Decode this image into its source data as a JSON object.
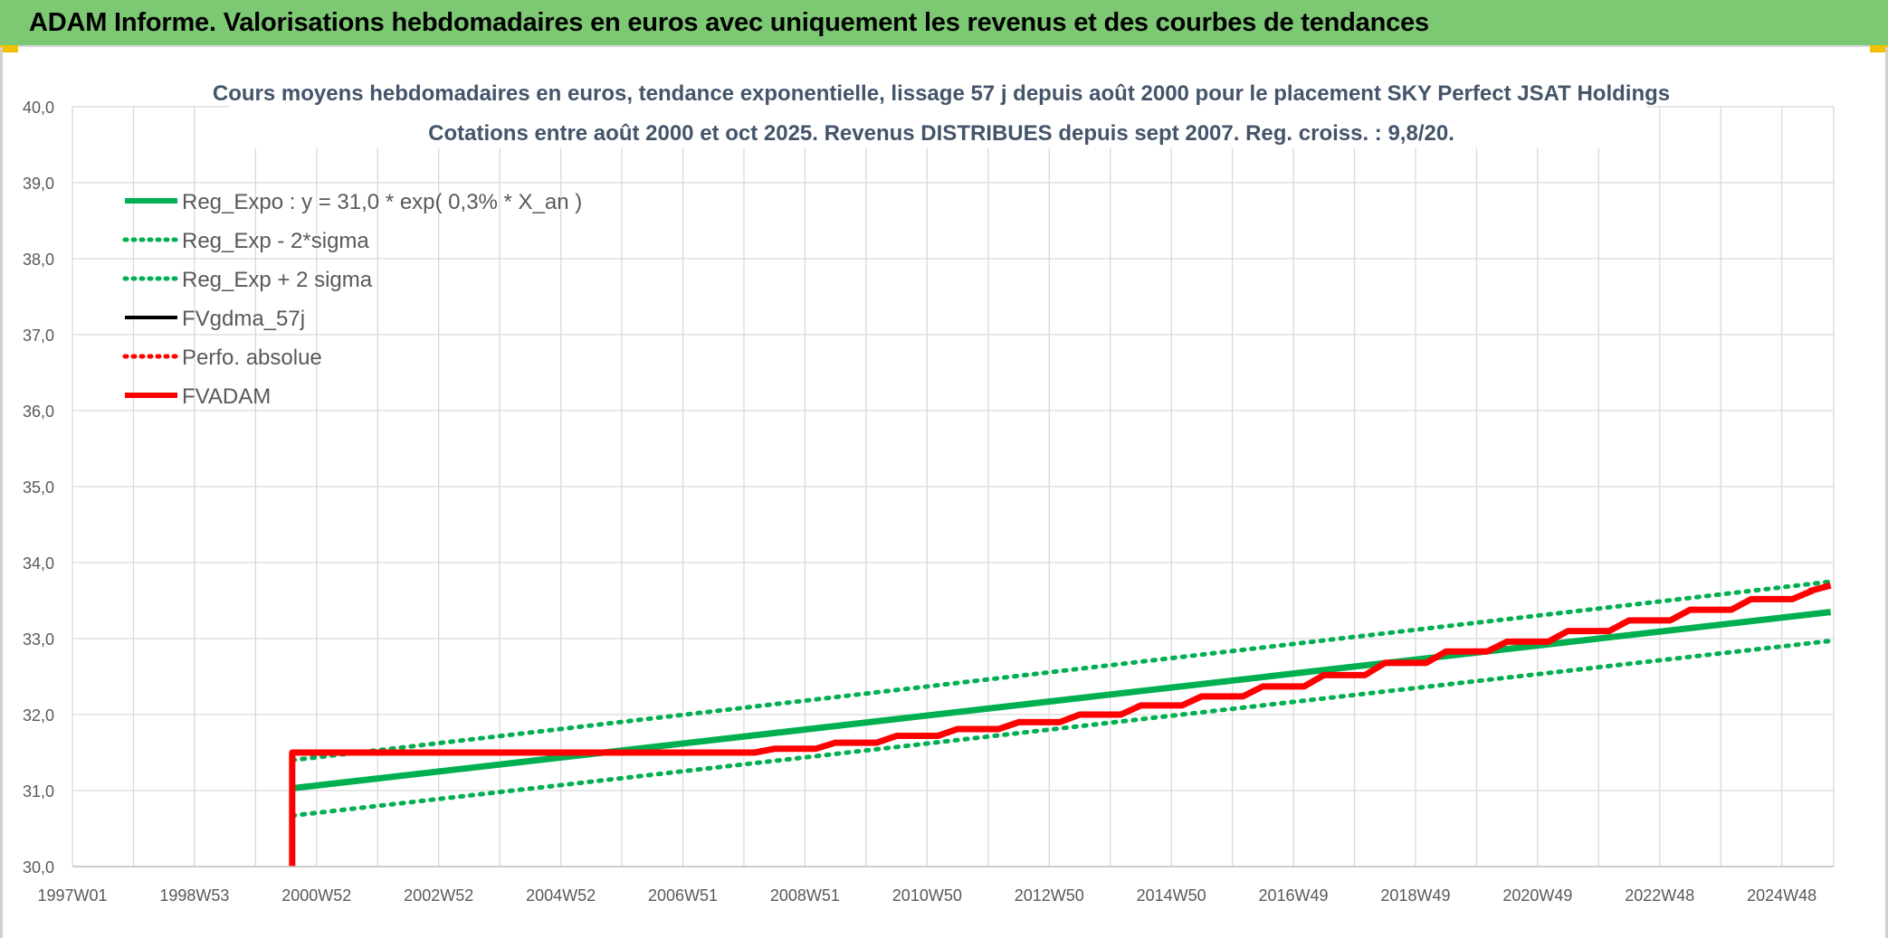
{
  "header": {
    "title": "ADAM Informe. Valorisations hebdomadaires en euros avec uniquement les revenus et des courbes de tendances"
  },
  "colors": {
    "banner": "#7dc873",
    "trend_green": "#00b050",
    "adam_red": "#ff0000",
    "black": "#000000",
    "grid": "#d9d9d9"
  },
  "chart_data": {
    "type": "line",
    "title": "Cours moyens hebdomadaires en euros, tendance exponentielle, lissage 57 j depuis août 2000 pour le placement SKY Perfect JSAT Holdings",
    "subtitle": "Cotations entre août 2000 et oct 2025. Revenus DISTRIBUES depuis sept 2007. Reg. croiss. : 9,8/20.",
    "xlabel": "",
    "ylabel": "",
    "ylim": [
      30,
      40
    ],
    "xlim": [
      1997.0,
      2025.85
    ],
    "y_ticks": [
      "30,0",
      "31,0",
      "32,0",
      "33,0",
      "34,0",
      "35,0",
      "36,0",
      "37,0",
      "38,0",
      "39,0",
      "40,0"
    ],
    "x_tick_labels": [
      "1997W01",
      "1998W53",
      "2000W52",
      "2002W52",
      "2004W52",
      "2006W51",
      "2008W51",
      "2010W50",
      "2012W50",
      "2014W50",
      "2016W49",
      "2018W49",
      "2020W49",
      "2022W48",
      "2024W48"
    ],
    "grid": true,
    "legend_position": "top-left",
    "series": [
      {
        "name": "Reg_Expo : y = 31,0 * exp( 0,3% *  X_an )",
        "style": "solid-thick",
        "color": "#00b050",
        "points": [
          [
            2000.6,
            31.03
          ],
          [
            2025.8,
            33.35
          ]
        ]
      },
      {
        "name": "Reg_Exp - 2*sigma",
        "style": "dotted",
        "color": "#00b050",
        "points": [
          [
            2000.6,
            30.67
          ],
          [
            2025.8,
            32.97
          ]
        ]
      },
      {
        "name": "Reg_Exp + 2 sigma",
        "style": "dotted",
        "color": "#00b050",
        "points": [
          [
            2000.6,
            31.4
          ],
          [
            2025.8,
            33.75
          ]
        ]
      },
      {
        "name": "FVgdma_57j",
        "style": "solid",
        "color": "#000000",
        "points": []
      },
      {
        "name": "Perfo. absolue",
        "style": "dotted",
        "color": "#ff0000",
        "points": []
      },
      {
        "name": "FVADAM",
        "style": "solid-thick",
        "color": "#ff0000",
        "points": [
          [
            2000.6,
            30.0
          ],
          [
            2000.6,
            31.5
          ],
          [
            2007.5,
            31.5
          ],
          [
            2008.5,
            31.55
          ],
          [
            2009.5,
            31.63
          ],
          [
            2010.5,
            31.72
          ],
          [
            2011.5,
            31.81
          ],
          [
            2012.5,
            31.9
          ],
          [
            2013.5,
            32.0
          ],
          [
            2014.5,
            32.12
          ],
          [
            2015.5,
            32.24
          ],
          [
            2016.5,
            32.37
          ],
          [
            2017.5,
            32.52
          ],
          [
            2018.5,
            32.68
          ],
          [
            2019.5,
            32.83
          ],
          [
            2020.5,
            32.96
          ],
          [
            2021.5,
            33.1
          ],
          [
            2022.5,
            33.24
          ],
          [
            2023.5,
            33.38
          ],
          [
            2024.5,
            33.52
          ],
          [
            2025.5,
            33.63
          ],
          [
            2025.8,
            33.7
          ]
        ]
      }
    ]
  }
}
